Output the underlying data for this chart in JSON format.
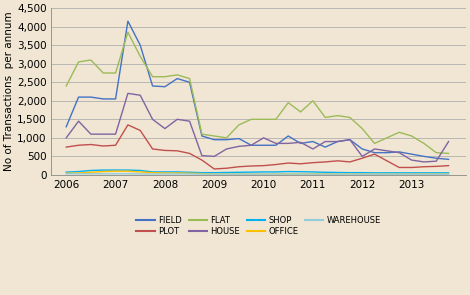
{
  "background_color": "#f0e6d3",
  "plot_bg_color": "#f0e6d3",
  "ylabel": "No of Transactions  per annum",
  "ylim": [
    0,
    4500
  ],
  "yticks": [
    0,
    500,
    1000,
    1500,
    2000,
    2500,
    3000,
    3500,
    4000,
    4500
  ],
  "x_labels": [
    "2006",
    "2007",
    "2008",
    "2009",
    "2010",
    "2011",
    "2012",
    "2013"
  ],
  "x_tick_positions": [
    2006,
    2007,
    2008,
    2009,
    2010,
    2011,
    2012,
    2013
  ],
  "series": {
    "FIELD": {
      "color": "#4472c4",
      "x": [
        2006.0,
        2006.25,
        2006.5,
        2006.75,
        2007.0,
        2007.25,
        2007.5,
        2007.75,
        2008.0,
        2008.25,
        2008.5,
        2008.75,
        2009.0,
        2009.25,
        2009.5,
        2009.75,
        2010.0,
        2010.25,
        2010.5,
        2010.75,
        2011.0,
        2011.25,
        2011.5,
        2011.75,
        2012.0,
        2012.25,
        2012.5,
        2012.75,
        2013.0,
        2013.25,
        2013.5,
        2013.75
      ],
      "values": [
        1300,
        2100,
        2100,
        2050,
        2050,
        4150,
        3500,
        2400,
        2380,
        2600,
        2500,
        1050,
        950,
        950,
        980,
        800,
        800,
        800,
        1050,
        850,
        900,
        750,
        900,
        950,
        700,
        600,
        600,
        620,
        560,
        500,
        450,
        420
      ]
    },
    "PLOT": {
      "color": "#c0504d",
      "x": [
        2006.0,
        2006.25,
        2006.5,
        2006.75,
        2007.0,
        2007.25,
        2007.5,
        2007.75,
        2008.0,
        2008.25,
        2008.5,
        2008.75,
        2009.0,
        2009.25,
        2009.5,
        2009.75,
        2010.0,
        2010.25,
        2010.5,
        2010.75,
        2011.0,
        2011.25,
        2011.5,
        2011.75,
        2012.0,
        2012.25,
        2012.5,
        2012.75,
        2013.0,
        2013.25,
        2013.5,
        2013.75
      ],
      "values": [
        750,
        800,
        820,
        780,
        800,
        1350,
        1200,
        700,
        660,
        650,
        580,
        400,
        160,
        180,
        220,
        240,
        250,
        280,
        320,
        300,
        330,
        350,
        380,
        350,
        450,
        560,
        380,
        200,
        200,
        220,
        230,
        250
      ]
    },
    "FLAT": {
      "color": "#9bbb59",
      "x": [
        2006.0,
        2006.25,
        2006.5,
        2006.75,
        2007.0,
        2007.25,
        2007.5,
        2007.75,
        2008.0,
        2008.25,
        2008.5,
        2008.75,
        2009.0,
        2009.25,
        2009.5,
        2009.75,
        2010.0,
        2010.25,
        2010.5,
        2010.75,
        2011.0,
        2011.25,
        2011.5,
        2011.75,
        2012.0,
        2012.25,
        2012.5,
        2012.75,
        2013.0,
        2013.25,
        2013.5,
        2013.75
      ],
      "values": [
        2400,
        3050,
        3100,
        2750,
        2750,
        3850,
        3200,
        2650,
        2650,
        2700,
        2600,
        1100,
        1050,
        1000,
        1350,
        1500,
        1500,
        1500,
        1950,
        1700,
        2000,
        1550,
        1600,
        1550,
        1250,
        850,
        1000,
        1150,
        1050,
        850,
        600,
        580
      ]
    },
    "HOUSE": {
      "color": "#8064a2",
      "x": [
        2006.0,
        2006.25,
        2006.5,
        2006.75,
        2007.0,
        2007.25,
        2007.5,
        2007.75,
        2008.0,
        2008.25,
        2008.5,
        2008.75,
        2009.0,
        2009.25,
        2009.5,
        2009.75,
        2010.0,
        2010.25,
        2010.5,
        2010.75,
        2011.0,
        2011.25,
        2011.5,
        2011.75,
        2012.0,
        2012.25,
        2012.5,
        2012.75,
        2013.0,
        2013.25,
        2013.5,
        2013.75
      ],
      "values": [
        1000,
        1450,
        1100,
        1100,
        1100,
        2200,
        2150,
        1500,
        1250,
        1500,
        1450,
        520,
        500,
        700,
        770,
        800,
        1000,
        850,
        850,
        880,
        700,
        900,
        900,
        950,
        500,
        700,
        650,
        600,
        400,
        350,
        370,
        900
      ]
    },
    "SHOP": {
      "color": "#00b0f0",
      "x": [
        2006.0,
        2006.25,
        2006.5,
        2006.75,
        2007.0,
        2007.25,
        2007.5,
        2007.75,
        2008.0,
        2008.25,
        2008.5,
        2008.75,
        2009.0,
        2009.25,
        2009.5,
        2009.75,
        2010.0,
        2010.25,
        2010.5,
        2010.75,
        2011.0,
        2011.25,
        2011.5,
        2011.75,
        2012.0,
        2012.25,
        2012.5,
        2012.75,
        2013.0,
        2013.25,
        2013.5,
        2013.75
      ],
      "values": [
        75,
        90,
        120,
        130,
        130,
        130,
        120,
        80,
        80,
        80,
        70,
        60,
        60,
        65,
        70,
        75,
        80,
        80,
        90,
        85,
        80,
        70,
        65,
        60,
        60,
        55,
        55,
        55,
        55,
        55,
        55,
        55
      ]
    },
    "OFFICE": {
      "color": "#ffc000",
      "x": [
        2006.0,
        2006.25,
        2006.5,
        2006.75,
        2007.0,
        2007.25,
        2007.5,
        2007.75,
        2008.0,
        2008.25,
        2008.5,
        2008.75,
        2009.0,
        2009.25,
        2009.5,
        2009.75,
        2010.0,
        2010.25,
        2010.5,
        2010.75,
        2011.0,
        2011.25,
        2011.5,
        2011.75,
        2012.0,
        2012.25,
        2012.5,
        2012.75,
        2013.0,
        2013.25,
        2013.5,
        2013.75
      ],
      "values": [
        45,
        50,
        70,
        90,
        100,
        100,
        80,
        60,
        50,
        50,
        45,
        35,
        25,
        22,
        20,
        20,
        20,
        22,
        25,
        22,
        25,
        25,
        22,
        22,
        20,
        20,
        18,
        18,
        20,
        22,
        20,
        20
      ]
    },
    "WAREHOUSE": {
      "color": "#92cddc",
      "x": [
        2006.0,
        2006.25,
        2006.5,
        2006.75,
        2007.0,
        2007.25,
        2007.5,
        2007.75,
        2008.0,
        2008.25,
        2008.5,
        2008.75,
        2009.0,
        2009.25,
        2009.5,
        2009.75,
        2010.0,
        2010.25,
        2010.5,
        2010.75,
        2011.0,
        2011.25,
        2011.5,
        2011.75,
        2012.0,
        2012.25,
        2012.5,
        2012.75,
        2013.0,
        2013.25,
        2013.5,
        2013.75
      ],
      "values": [
        30,
        30,
        30,
        30,
        30,
        30,
        25,
        25,
        25,
        25,
        25,
        20,
        20,
        20,
        20,
        20,
        20,
        20,
        22,
        20,
        20,
        20,
        20,
        20,
        18,
        18,
        18,
        18,
        18,
        18,
        18,
        18
      ]
    }
  },
  "legend_order": [
    "FIELD",
    "PLOT",
    "FLAT",
    "HOUSE",
    "SHOP",
    "OFFICE",
    "WAREHOUSE"
  ],
  "legend_row1": [
    "FIELD",
    "PLOT",
    "FLAT",
    "HOUSE"
  ],
  "legend_row2": [
    "SHOP",
    "OFFICE",
    "WAREHOUSE"
  ],
  "grid_color": "#b0b0b0",
  "tick_label_fontsize": 7.5,
  "ylabel_fontsize": 7.5,
  "legend_fontsize": 6.0
}
